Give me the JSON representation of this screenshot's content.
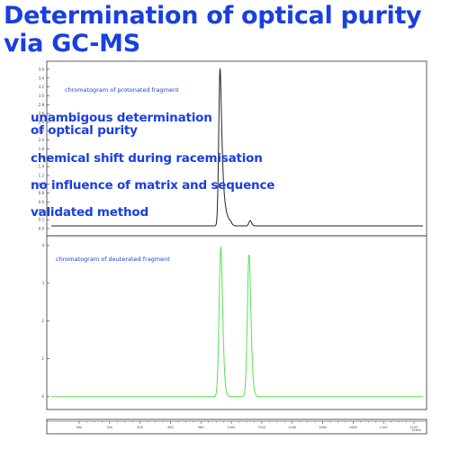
{
  "title_line1": "Determination of optical purity",
  "title_line2": "via GC-MS",
  "bullets": [
    "unambigous determination",
    "of optical purity",
    "chemical shift during racemisation",
    "no influence of matrix and sequence",
    "validated method"
  ],
  "colors": {
    "title": "#1a3fe0",
    "trace_top": "#222222",
    "trace_bottom": "#55e255",
    "frame": "#333333"
  },
  "chart_data": [
    {
      "type": "line",
      "label": "chromatogram of protonated fragment",
      "y_ticks": [
        "0.0",
        "0.2",
        "0.4",
        "0.6",
        "0.8",
        "1.0",
        "1.2",
        "1.4",
        "1.6",
        "1.8",
        "2.0",
        "2.2",
        "2.4",
        "2.6",
        "2.8",
        "3.0",
        "3.2",
        "3.4",
        "3.6"
      ],
      "ylim": [
        0,
        3.7
      ],
      "xlim": [
        0,
        100
      ],
      "baseline": 0.06,
      "peaks": [
        {
          "center": 45.4,
          "height": 3.55,
          "sigma": 0.35,
          "tail": 2.2
        },
        {
          "center": 53.5,
          "height": 0.12,
          "sigma": 0.35,
          "tail": 0.8
        }
      ]
    },
    {
      "type": "line",
      "label": "chromatogram of deuterated fragment",
      "y_ticks": [
        "0",
        "1",
        "2",
        "3",
        "4"
      ],
      "ylim": [
        -0.15,
        4.15
      ],
      "xlim": [
        0,
        100
      ],
      "baseline": 0.0,
      "peaks": [
        {
          "center": 45.6,
          "height": 3.95,
          "sigma": 0.45,
          "tail": 0.6
        },
        {
          "center": 53.2,
          "height": 3.75,
          "sigma": 0.45,
          "tail": 0.6
        }
      ]
    }
  ],
  "x_axis": {
    "ticks": [
      "900",
      "920",
      "940",
      "960",
      "980",
      "1000",
      "1020",
      "1040",
      "1060",
      "1080",
      "1100",
      "1120"
    ],
    "unit_label": "Scans"
  }
}
